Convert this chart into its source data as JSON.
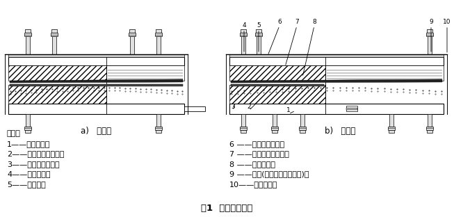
{
  "title": "图1  多向活动支座",
  "subtitle_left": "a)   纵桥向",
  "subtitle_right": "b)   横桥向",
  "note_header": "说明：",
  "legend_left": [
    "1——下支座板；",
    "2——球面非金属滑板；",
    "3——球面不锈钢板；",
    "4——上支座板；",
    "5——密封环；"
  ],
  "legend_right": [
    "6 ——平面不锈钢板；",
    "7 ——平面非金属滑板；",
    "8 ——球冠衬板；",
    "9 ——锚栓(螺栓、套筒和螺杆)；",
    "10——防尘围板。"
  ],
  "bg_color": "#ffffff",
  "text_color": "#000000"
}
